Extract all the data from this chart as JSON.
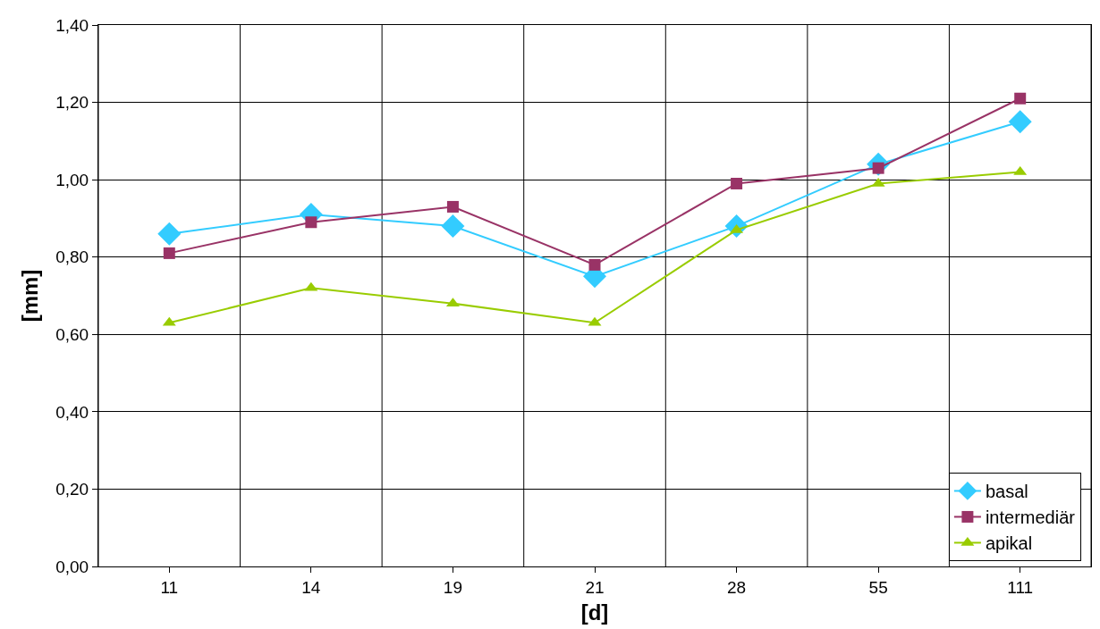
{
  "chart_data": {
    "type": "line",
    "xlabel": "[d]",
    "ylabel": "[mm]",
    "categories": [
      "11",
      "14",
      "19",
      "21",
      "28",
      "55",
      "111"
    ],
    "series": [
      {
        "name": "basal",
        "color": "#33ccff",
        "marker": "diamond",
        "values": [
          0.86,
          0.91,
          0.88,
          0.75,
          0.88,
          1.04,
          1.15
        ]
      },
      {
        "name": "intermediär",
        "color": "#993366",
        "marker": "square",
        "values": [
          0.81,
          0.89,
          0.93,
          0.78,
          0.99,
          1.03,
          1.21
        ]
      },
      {
        "name": "apikal",
        "color": "#99cc00",
        "marker": "triangle",
        "values": [
          0.63,
          0.72,
          0.68,
          0.63,
          0.87,
          0.99,
          1.02
        ]
      }
    ],
    "ylim": [
      0,
      1.4
    ],
    "yticks": [
      {
        "value": 0,
        "label": "0,00"
      },
      {
        "value": 0.2,
        "label": "0,20"
      },
      {
        "value": 0.4,
        "label": "0,40"
      },
      {
        "value": 0.6,
        "label": "0,60"
      },
      {
        "value": 0.8,
        "label": "0,80"
      },
      {
        "value": 1.0,
        "label": "1,00"
      },
      {
        "value": 1.2,
        "label": "1,20"
      },
      {
        "value": 1.4,
        "label": "1,40"
      }
    ],
    "grid": true,
    "legend": "bottom right",
    "line_style": "solid"
  }
}
